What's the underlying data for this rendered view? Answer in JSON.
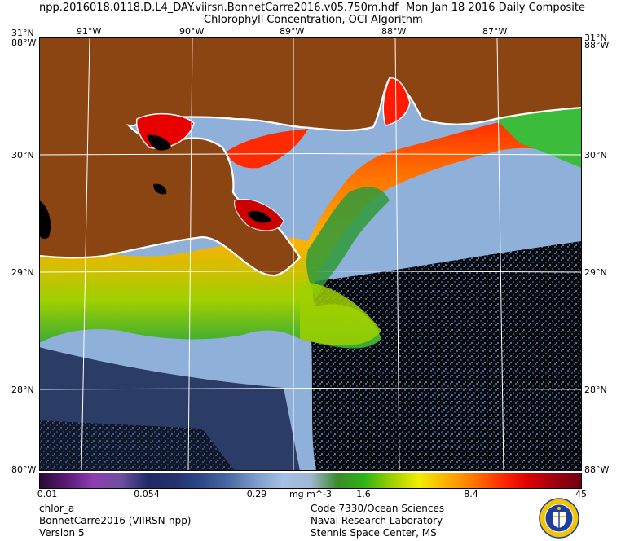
{
  "header": {
    "filename": "npp.2016018.0118.D.L4_DAY.viirsn.BonnetCarre2016.v05.750m.hdf",
    "date": "Mon Jan 18 2016 Daily Composite",
    "subtitle": "Chlorophyll Concentration, OCI Algorithm"
  },
  "map": {
    "lon_labels": [
      "91°W",
      "90°W",
      "89°W",
      "88°W",
      "87°W"
    ],
    "lat_labels": [
      "30°N",
      "29°N",
      "28°N"
    ],
    "corner_top_left_lat": "31°N",
    "corner_top_left_lon": "88°W",
    "corner_top_right_lat": "31°N",
    "corner_top_right_lon": "88°W",
    "corner_bottom_left": "80°W",
    "corner_bottom_right": "88°W",
    "colors": {
      "land": "#8b4513",
      "coast": "#ffffff",
      "grid": "#ffffff",
      "no_data": "#000000"
    }
  },
  "colorbar": {
    "ticks": [
      "0.01",
      "0.054",
      "0.29",
      "1.6",
      "8.4",
      "45"
    ],
    "units": "mg m^-3",
    "colors": [
      "#2a0a35",
      "#5b1a7a",
      "#8e3fb0",
      "#6d4fa0",
      "#1e2a66",
      "#23336e",
      "#2e4a8a",
      "#4b6aa6",
      "#7d9ccc",
      "#a5c0e6",
      "#9fb7d4",
      "#3a8a2a",
      "#2fb316",
      "#9ed000",
      "#f0ef00",
      "#ffb000",
      "#ff7a00",
      "#ff3000",
      "#e00000",
      "#a00010",
      "#700010"
    ]
  },
  "footer": {
    "left": [
      "chlor_a",
      "BonnetCarre2016 (VIIRSN-npp)",
      "Version 5"
    ],
    "right": [
      "Code 7330/Ocean Sciences",
      "Naval Research Laboratory",
      "Stennis Space Center, MS"
    ]
  },
  "seal": {
    "colors": {
      "ring": "#f2c500",
      "inner": "#1d3f9c"
    }
  }
}
